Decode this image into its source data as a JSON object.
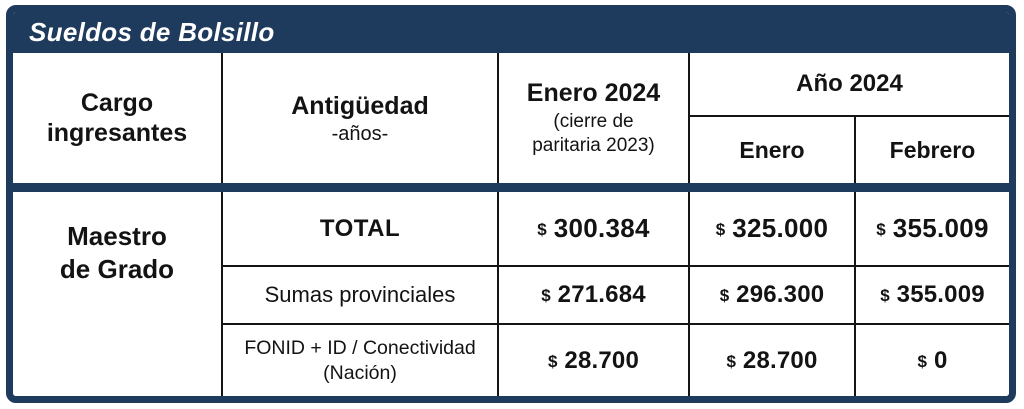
{
  "title": "Sueldos de Bolsillo",
  "colors": {
    "navy": "#1e3a5c",
    "line": "#151515",
    "text": "#131313",
    "background": "#ffffff"
  },
  "table": {
    "currency": "$",
    "headers": {
      "cargo": "Cargo ingresantes",
      "antiguedad_main": "Antigüedad",
      "antiguedad_sub": "-años-",
      "enero2024_main": "Enero 2024",
      "enero2024_sub": "(cierre de paritaria 2023)",
      "ano2024_group": "Año 2024",
      "sub_enero": "Enero",
      "sub_febrero": "Febrero"
    },
    "row_group": "Maestro de Grado",
    "rows": [
      {
        "label": "TOTAL",
        "values": [
          "300.384",
          "325.000",
          "355.009"
        ]
      },
      {
        "label": "Sumas provinciales",
        "values": [
          "271.684",
          "296.300",
          "355.009"
        ]
      },
      {
        "label": "FONID + ID / Conectividad (Nación)",
        "values": [
          "28.700",
          "28.700",
          "0"
        ]
      }
    ]
  },
  "chart_data": {
    "type": "table",
    "title": "Sueldos de Bolsillo",
    "columns": [
      "Cargo ingresantes",
      "Antigüedad -años-",
      "Enero 2024 (cierre de paritaria 2023)",
      "Año 2024 - Enero",
      "Año 2024 - Febrero"
    ],
    "rows": [
      [
        "Maestro de Grado",
        "TOTAL",
        "$ 300.384",
        "$ 325.000",
        "$ 355.009"
      ],
      [
        "Maestro de Grado",
        "Sumas provinciales",
        "$ 271.684",
        "$ 296.300",
        "$ 355.009"
      ],
      [
        "Maestro de Grado",
        "FONID + ID / Conectividad (Nación)",
        "$ 28.700",
        "$ 28.700",
        "$ 0"
      ]
    ]
  }
}
